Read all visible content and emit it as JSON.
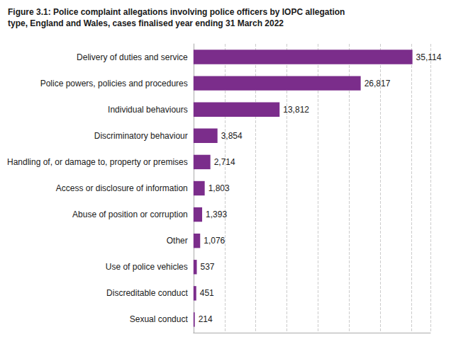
{
  "chart_data": {
    "type": "bar",
    "orientation": "horizontal",
    "title": "Figure 3.1: Police complaint allegations involving police officers by IOPC allegation",
    "subtitle": "type, England and Wales, cases finalised year ending 31 March 2022",
    "categories": [
      "Delivery of duties and service",
      "Police powers, policies and procedures",
      "Individual behaviours",
      "Discriminatory behaviour",
      "Handling of, or damage to, property or premises",
      "Access or disclosure of information",
      "Abuse of position or corruption",
      "Other",
      "Use of police vehicles",
      "Discreditable conduct",
      "Sexual conduct"
    ],
    "values": [
      35114,
      26817,
      13812,
      3854,
      2714,
      1803,
      1393,
      1076,
      537,
      451,
      214
    ],
    "value_labels": [
      "35,114",
      "26,817",
      "13,812",
      "3,854",
      "2,714",
      "1,803",
      "1,393",
      "1,076",
      "537",
      "451",
      "214"
    ],
    "data_labels": true,
    "color": "#7b2d8b",
    "xlim": [
      0,
      38000
    ],
    "xticks": [
      0,
      5000,
      10000,
      15000,
      20000,
      25000,
      30000,
      35000
    ],
    "grid": true,
    "tick_labels": "y"
  }
}
